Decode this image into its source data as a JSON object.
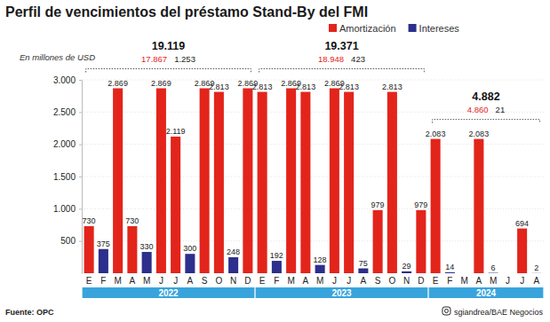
{
  "chart_data": {
    "type": "bar",
    "title": "Perfil de vencimientos del préstamo Stand-By del FMI",
    "ylabel": "En millones de USD",
    "categories": [
      "E",
      "F",
      "M",
      "A",
      "M",
      "J",
      "J",
      "A",
      "S",
      "O",
      "N",
      "D",
      "E",
      "F",
      "M",
      "A",
      "M",
      "J",
      "J",
      "A",
      "S",
      "O",
      "N",
      "D",
      "E",
      "F",
      "M",
      "A",
      "M",
      "J",
      "J",
      "A"
    ],
    "x_groups": [
      {
        "label": "2022",
        "count": 12,
        "total": "19.119",
        "amortizacion": "17.867",
        "intereses": "1.253"
      },
      {
        "label": "2023",
        "count": 12,
        "total": "19.371",
        "amortizacion": "18.948",
        "intereses": "423"
      },
      {
        "label": "2024",
        "count": 8,
        "total": "4.882",
        "amortizacion": "4.860",
        "intereses": "21"
      }
    ],
    "series": [
      {
        "name": "Amortización",
        "color": "#e3241b",
        "values": [
          730,
          null,
          2869,
          730,
          null,
          2869,
          2119,
          null,
          2869,
          2813,
          null,
          2869,
          2813,
          null,
          2869,
          2813,
          null,
          2869,
          2813,
          null,
          979,
          2813,
          null,
          979,
          2083,
          null,
          null,
          2083,
          null,
          null,
          694,
          null
        ],
        "value_labels": [
          "730",
          null,
          "2.869",
          "730",
          null,
          "2.869",
          "2.119",
          null,
          "2.869",
          "2.813",
          null,
          "2.869",
          "2.813",
          null,
          "2.869",
          "2.813",
          null,
          "2.869",
          "2.813",
          null,
          "979",
          "2.813",
          null,
          "979",
          "2.083",
          null,
          null,
          "2.083",
          null,
          null,
          "694",
          null
        ]
      },
      {
        "name": "Intereses",
        "color": "#2c2f8c",
        "values": [
          null,
          375,
          null,
          null,
          330,
          null,
          null,
          300,
          null,
          null,
          248,
          null,
          null,
          192,
          null,
          null,
          128,
          null,
          null,
          75,
          null,
          null,
          29,
          null,
          null,
          14,
          null,
          null,
          6,
          null,
          null,
          2
        ],
        "value_labels": [
          null,
          "375",
          null,
          null,
          "330",
          null,
          null,
          "300",
          null,
          null,
          "248",
          null,
          null,
          "192",
          null,
          null,
          "128",
          null,
          null,
          "75",
          null,
          null,
          "29",
          null,
          null,
          "14",
          null,
          null,
          "6",
          null,
          null,
          "2"
        ]
      }
    ],
    "ylim": [
      0,
      3000
    ],
    "yticks": [
      500,
      {
        "value": 1000,
        "label": "1.000"
      },
      {
        "value": 1500,
        "label": "1.500"
      },
      {
        "value": 2000,
        "label": "2.000"
      },
      {
        "value": 2500,
        "label": "2.500"
      },
      {
        "value": 3000,
        "label": "3.000"
      }
    ],
    "grid": true,
    "legend": "top right",
    "data_labels": true,
    "source": "Fuente: OPC",
    "credit": "sgiandrea/BAE Negocios"
  }
}
